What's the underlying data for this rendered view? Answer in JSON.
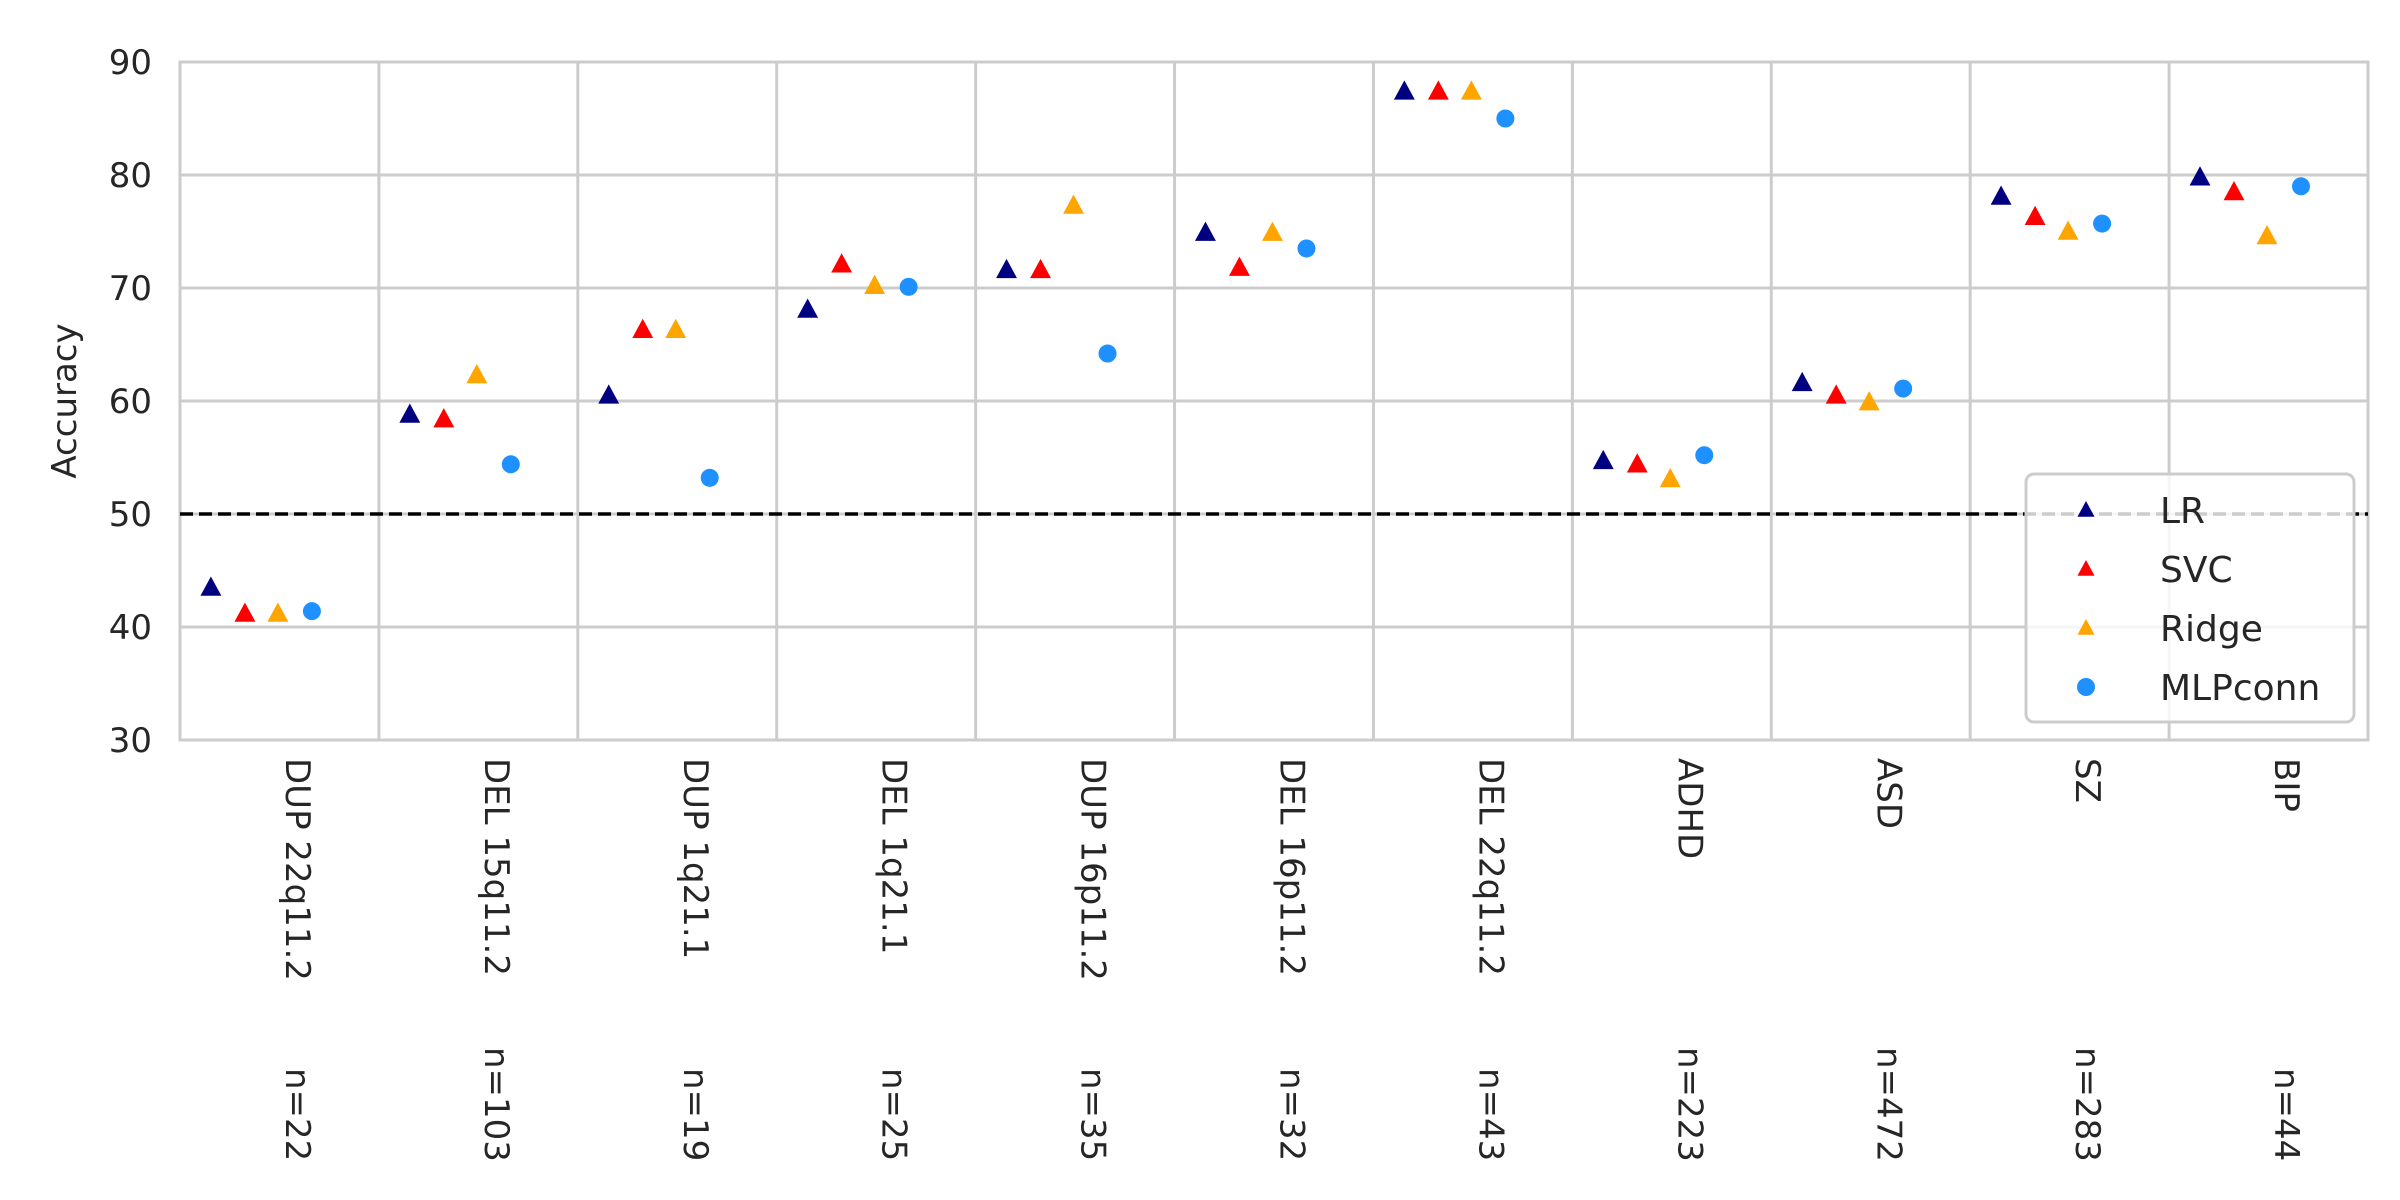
{
  "chart_data": {
    "type": "scatter",
    "title": "",
    "xlabel": "",
    "ylabel": "Accuracy",
    "ylim": [
      30,
      90
    ],
    "yticks": [
      30,
      40,
      50,
      60,
      70,
      80,
      90
    ],
    "grid": true,
    "legend_position": "lower-right",
    "reference_line": {
      "y": 50,
      "style": "dashed",
      "color": "#000000"
    },
    "categories": [
      {
        "label": "DUP 22q11.2",
        "n": "n=22"
      },
      {
        "label": "DEL 15q11.2",
        "n": "n=103"
      },
      {
        "label": "DUP 1q21.1",
        "n": "n=19"
      },
      {
        "label": "DEL 1q21.1",
        "n": "n=25"
      },
      {
        "label": "DUP 16p11.2",
        "n": "n=35"
      },
      {
        "label": "DEL 16p11.2",
        "n": "n=32"
      },
      {
        "label": "DEL 22q11.2",
        "n": "n=43"
      },
      {
        "label": "ADHD",
        "n": "n=223"
      },
      {
        "label": "ASD",
        "n": "n=472"
      },
      {
        "label": "SZ",
        "n": "n=283"
      },
      {
        "label": "BIP",
        "n": "n=44"
      }
    ],
    "series": [
      {
        "name": "LR",
        "marker": "triangle",
        "color": "#000080",
        "values": [
          43.5,
          58.8,
          60.5,
          68.1,
          71.6,
          74.9,
          87.4,
          54.7,
          61.6,
          78.1,
          79.8
        ]
      },
      {
        "name": "SVC",
        "marker": "triangle",
        "color": "#ff0000",
        "values": [
          41.2,
          58.4,
          66.3,
          72.1,
          71.6,
          71.8,
          87.4,
          54.4,
          60.5,
          76.3,
          78.5
        ]
      },
      {
        "name": "Ridge",
        "marker": "triangle",
        "color": "#ffa500",
        "values": [
          41.2,
          62.3,
          66.3,
          70.2,
          77.3,
          74.9,
          87.4,
          53.1,
          59.9,
          75.0,
          74.6
        ]
      },
      {
        "name": "MLPconn",
        "marker": "circle",
        "color": "#1e90ff",
        "values": [
          41.4,
          54.4,
          53.2,
          70.1,
          64.2,
          73.5,
          85.0,
          55.2,
          61.1,
          75.7,
          79.0
        ]
      }
    ]
  }
}
